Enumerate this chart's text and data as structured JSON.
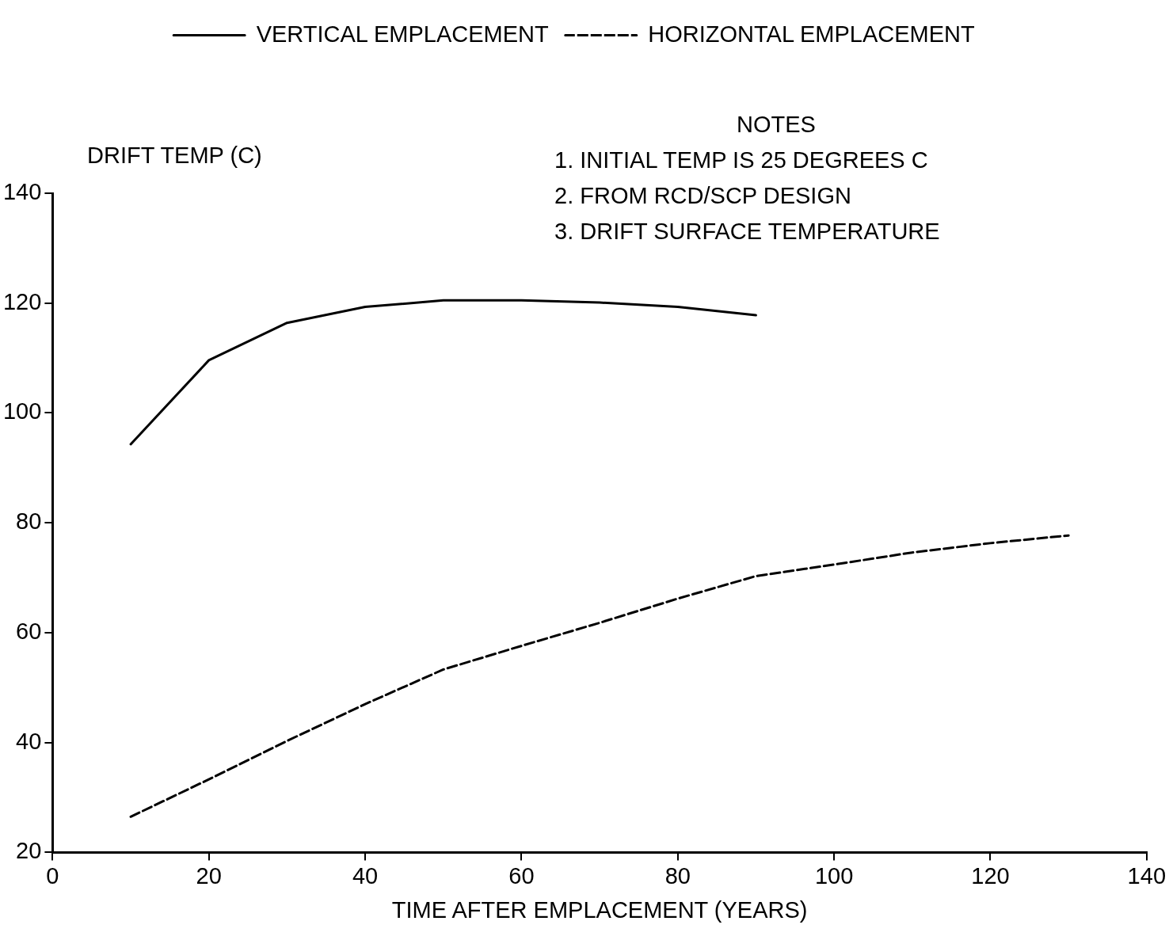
{
  "chart_data": {
    "type": "line",
    "xlabel": "TIME AFTER EMPLACEMENT (YEARS)",
    "ylabel": "DRIFT TEMP (C)",
    "annotations": [
      "NOTES",
      "1. INITIAL TEMP IS 25 DEGREES C",
      "2. FROM RCD/SCP DESIGN",
      "3. DRIFT SURFACE TEMPERATURE"
    ],
    "x": [
      10,
      20,
      30,
      40,
      50,
      60,
      70,
      80,
      90,
      100,
      110,
      120,
      130
    ],
    "series": [
      {
        "name": "VERTICAL EMPLACEMENT",
        "color": "#000000",
        "line_style": "solid",
        "values": [
          94.3,
          109.6,
          116.4,
          119.3,
          120.5,
          120.5,
          120.1,
          119.3,
          117.8,
          null,
          null,
          null,
          null
        ]
      },
      {
        "name": "HORIZONTAL EMPLACEMENT",
        "color": "#000000",
        "line_style": "dashed",
        "values": [
          26.5,
          33.3,
          40.3,
          47.0,
          53.3,
          57.6,
          61.8,
          66.2,
          70.3,
          72.4,
          74.6,
          76.3,
          77.7
        ]
      }
    ],
    "xlim": [
      0,
      140
    ],
    "xticks": [
      0,
      20,
      40,
      60,
      80,
      100,
      120,
      140
    ],
    "ylim": [
      20,
      140
    ],
    "yticks": [
      20,
      40,
      60,
      80,
      100,
      120,
      140
    ],
    "grid": false,
    "legend": "top",
    "marker": "none"
  }
}
